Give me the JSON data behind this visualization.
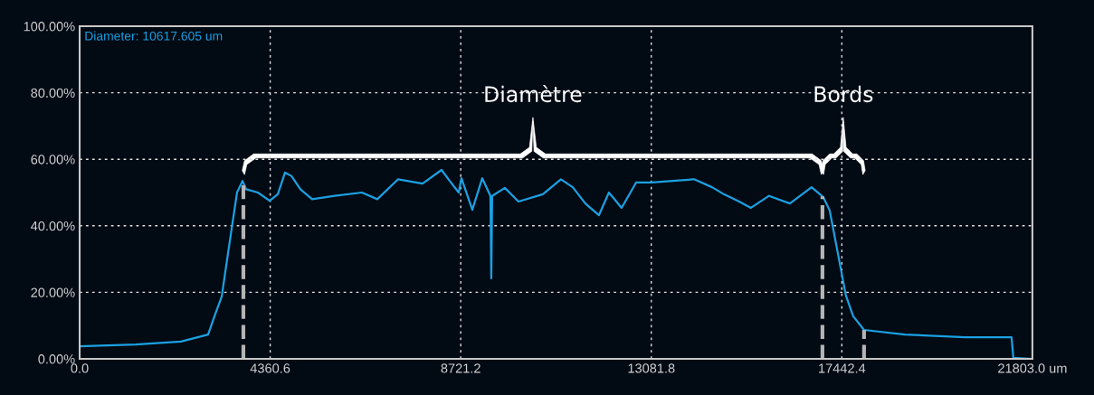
{
  "chart_data": {
    "type": "line",
    "x": [
      0,
      1284,
      2319,
      2940,
      3085,
      3251,
      3396,
      3602,
      3727,
      3810,
      4079,
      4348,
      4534,
      4700,
      4845,
      5052,
      5321,
      5839,
      6460,
      6812,
      7288,
      7847,
      8282,
      8468,
      8675,
      8737,
      8986,
      9213,
      9400,
      9420,
      9440,
      9731,
      10041,
      10600,
      11014,
      11284,
      11573,
      11884,
      12112,
      12402,
      12733,
      13085,
      14058,
      14472,
      14741,
      15093,
      15362,
      15776,
      16253,
      16749,
      17019,
      17164,
      17536,
      17702,
      17950,
      18882,
      20269,
      21325,
      21367,
      21801
    ],
    "series": [
      {
        "color": "#1ba1e2",
        "values": [
          3.8,
          4.3,
          5.2,
          7.3,
          12.8,
          18.7,
          31.8,
          50,
          53.5,
          51,
          50,
          47.5,
          49.5,
          56,
          55,
          51,
          48,
          49,
          50,
          48,
          54,
          52.7,
          56.8,
          53.5,
          50,
          54.3,
          44.8,
          54.3,
          49,
          24.2,
          49,
          51.4,
          47.3,
          49.5,
          54,
          51.6,
          46.7,
          43.2,
          50,
          45.4,
          53,
          53,
          54,
          51.6,
          49.5,
          47.3,
          45.4,
          49,
          46.7,
          51.6,
          48.6,
          44.6,
          19,
          12.8,
          8.7,
          7.3,
          6.5,
          6.5,
          0.3,
          0
        ]
      }
    ],
    "xlim": [
      0,
      21803
    ],
    "ylim": [
      0,
      100
    ],
    "xticks": [
      {
        "value": 0,
        "label": "0.0"
      },
      4360.6,
      8721.2,
      13081.8,
      17442.4,
      {
        "value": 21803,
        "label": "21803.0 um"
      }
    ],
    "yticks": [
      {
        "value": 0,
        "label": "0.00%"
      },
      {
        "value": 20,
        "label": "20.00%"
      },
      {
        "value": 40,
        "label": "40.00%"
      },
      {
        "value": 60,
        "label": "60.00%"
      },
      {
        "value": 80,
        "label": "80.00%"
      },
      {
        "value": 100,
        "label": "100.00%"
      }
    ],
    "grid": true,
    "ref_lines": [
      {
        "axis": "x",
        "value": 3747,
        "color": "#b4b4b4",
        "line_style": "dashed"
      },
      {
        "axis": "x",
        "value": 16998,
        "color": "#b4b4b4",
        "line_style": "dashed"
      },
      {
        "axis": "x",
        "value": 17950,
        "color": "#b4b4b4",
        "line_style": "dashed"
      }
    ],
    "annotations": [
      "Diameter: 10617.605 um",
      "Diamètre",
      "Bords"
    ]
  }
}
